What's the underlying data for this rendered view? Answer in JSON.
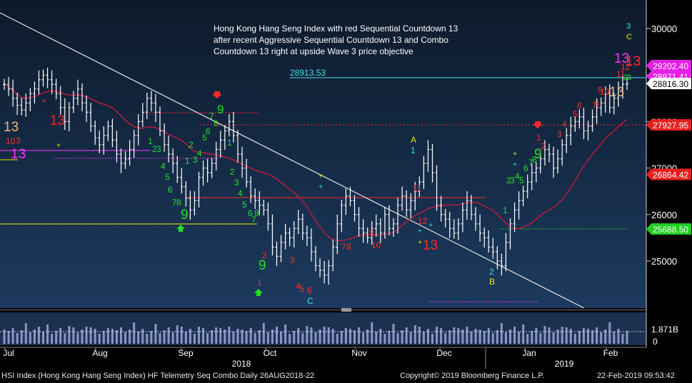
{
  "footer": {
    "left": "HSI Index (Hong Kong Hang Seng Index) HF Telemetry Seq Combo  Daily 26AUG2018-22",
    "center": "Copyright© 2019 Bloomberg Finance L.P.",
    "right": "22-Feb-2019 09:53:42"
  },
  "colors": {
    "background_top": "#0d1a2b",
    "background_bottom": "#1c3a5e",
    "price_bars": "#ffffff",
    "moving_average": "#d0193c",
    "trendline": "#e6e6e6",
    "green_count": "#22e022",
    "red_count": "#ff2a2a",
    "magenta_13": "#ff33ff",
    "yellow_level": "#e8e800",
    "cyan_level": "#33e6e6",
    "volume": "#8c95c8"
  },
  "chart_data": {
    "type": "candlestick",
    "title": "Hong Kong Hang Seng Index with red Sequential Countdown 13 after recent Aggressive Sequential Countdown 13 and Combo Countdown 13 right at upside Wave 3 price objective",
    "title_lines": [
      "Hong Kong Hang Seng Index with red Sequential Countdown 13",
      "after recent Aggressive Sequential Countdown 13 and Combo",
      "Countdown 13 right at upside Wave 3 price objective"
    ],
    "y_ticks": [
      "30000",
      "29000",
      "28000",
      "27000",
      "26000",
      "25000"
    ],
    "y_range": [
      24000,
      30500
    ],
    "x_months": [
      "Jul",
      "Aug",
      "Sep",
      "Oct",
      "Nov",
      "Dec",
      "Jan",
      "Feb"
    ],
    "x_years": [
      "2018",
      "2019"
    ],
    "price_labels": [
      {
        "text": "29202.40",
        "value": 29202.4,
        "color": "#e61ee6"
      },
      {
        "text": "28971.41",
        "value": 28971.41,
        "color": "#e61ee6"
      },
      {
        "text": "28816.30",
        "value": 28816.3,
        "color": "#ffffff"
      },
      {
        "text": "27927.95",
        "value": 27927.95,
        "color": "#e62020"
      },
      {
        "text": "26864.42",
        "value": 26864.42,
        "color": "#e62020"
      },
      {
        "text": "25688.50",
        "value": 25688.5,
        "color": "#22cc22"
      }
    ],
    "level_annotation": {
      "text": "28913.53",
      "value": 28913.53
    },
    "volume_label": "1.871B",
    "volume_ticks": [
      "0"
    ],
    "closes": [
      28800,
      28700,
      28500,
      28350,
      28250,
      28400,
      28600,
      28700,
      28900,
      29000,
      28900,
      28800,
      28600,
      28300,
      28000,
      28300,
      28500,
      28700,
      28400,
      28200,
      27900,
      27650,
      27500,
      27700,
      27900,
      27600,
      27300,
      27100,
      27200,
      27400,
      27700,
      28000,
      28200,
      28500,
      28400,
      28200,
      27800,
      27500,
      27300,
      27100,
      26800,
      26600,
      26350,
      26100,
      26300,
      26800,
      27000,
      26900,
      27100,
      27400,
      27600,
      27800,
      28000,
      27700,
      27300,
      27000,
      26700,
      26400,
      26300,
      26200,
      26100,
      25800,
      25300,
      25100,
      25400,
      25600,
      25500,
      25700,
      25900,
      25600,
      25500,
      25200,
      24900,
      24800,
      24700,
      24900,
      25300,
      25800,
      26200,
      26400,
      26300,
      26000,
      25700,
      25600,
      25500,
      25700,
      25800,
      25600,
      26000,
      25700,
      25800,
      26200,
      26400,
      26100,
      26300,
      26500,
      26700,
      27100,
      27400,
      26900,
      26200,
      26000,
      25900,
      25700,
      25600,
      25800,
      26100,
      26300,
      26000,
      25800,
      25600,
      25500,
      25300,
      25200,
      25000,
      24900,
      25400,
      25800,
      26100,
      26300,
      26500,
      26700,
      26900,
      27000,
      27200,
      27400,
      27300,
      27000,
      27200,
      27500,
      27700,
      27900,
      28000,
      28100,
      27800,
      27900,
      28100,
      28300,
      28400,
      28600,
      28300,
      28500,
      28700,
      28800,
      28816
    ]
  }
}
